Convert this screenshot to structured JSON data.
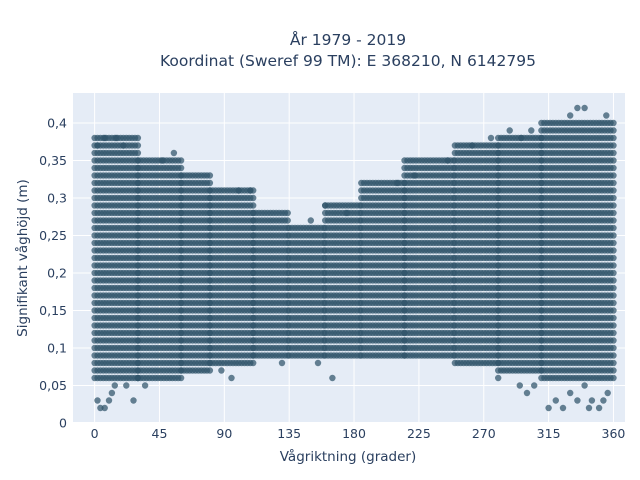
{
  "chart_data": {
    "type": "scatter",
    "title": "År 1979 - 2019",
    "subtitle": "Koordinat (Sweref 99 TM): E 368210, N 6142795",
    "xlabel": "Vågriktning (grader)",
    "ylabel": "Signifikant våghöjd (m)",
    "xlim": [
      -15,
      368
    ],
    "ylim": [
      0,
      0.44
    ],
    "x_ticks": [
      0,
      45,
      90,
      135,
      180,
      225,
      270,
      315,
      360
    ],
    "x_tick_labels": [
      "0",
      "45",
      "90",
      "135",
      "180",
      "225",
      "270",
      "315",
      "360"
    ],
    "y_ticks": [
      0,
      0.05,
      0.1,
      0.15,
      0.2,
      0.25,
      0.3,
      0.35,
      0.4
    ],
    "y_tick_labels": [
      "0",
      "0,05",
      "0,1",
      "0,15",
      "0,2",
      "0,25",
      "0,3",
      "0,35",
      "0,4"
    ],
    "grid": true,
    "legend": "none",
    "marker_color": "#2f5369",
    "plot_background": "#e5ecf6",
    "y_step": 0.01,
    "bands": [
      {
        "x_from": 0,
        "x_to": 30,
        "y_min": 0.06,
        "y_max": 0.38
      },
      {
        "x_from": 30,
        "x_to": 60,
        "y_min": 0.06,
        "y_max": 0.35
      },
      {
        "x_from": 60,
        "x_to": 80,
        "y_min": 0.07,
        "y_max": 0.33
      },
      {
        "x_from": 80,
        "x_to": 110,
        "y_min": 0.08,
        "y_max": 0.31
      },
      {
        "x_from": 110,
        "x_to": 135,
        "y_min": 0.09,
        "y_max": 0.28
      },
      {
        "x_from": 135,
        "x_to": 160,
        "y_min": 0.09,
        "y_max": 0.26
      },
      {
        "x_from": 160,
        "x_to": 185,
        "y_min": 0.09,
        "y_max": 0.29
      },
      {
        "x_from": 185,
        "x_to": 215,
        "y_min": 0.09,
        "y_max": 0.32
      },
      {
        "x_from": 215,
        "x_to": 250,
        "y_min": 0.09,
        "y_max": 0.35
      },
      {
        "x_from": 250,
        "x_to": 280,
        "y_min": 0.08,
        "y_max": 0.37
      },
      {
        "x_from": 280,
        "x_to": 310,
        "y_min": 0.07,
        "y_max": 0.38
      },
      {
        "x_from": 310,
        "x_to": 360,
        "y_min": 0.06,
        "y_max": 0.4
      }
    ],
    "outliers": [
      {
        "x": 2,
        "y": 0.03
      },
      {
        "x": 4,
        "y": 0.02
      },
      {
        "x": 7,
        "y": 0.02
      },
      {
        "x": 10,
        "y": 0.03
      },
      {
        "x": 12,
        "y": 0.04
      },
      {
        "x": 14,
        "y": 0.05
      },
      {
        "x": 27,
        "y": 0.03
      },
      {
        "x": 22,
        "y": 0.05
      },
      {
        "x": 35,
        "y": 0.05
      },
      {
        "x": 30,
        "y": 0.06
      },
      {
        "x": 95,
        "y": 0.06
      },
      {
        "x": 88,
        "y": 0.07
      },
      {
        "x": 165,
        "y": 0.06
      },
      {
        "x": 130,
        "y": 0.08
      },
      {
        "x": 155,
        "y": 0.08
      },
      {
        "x": 280,
        "y": 0.06
      },
      {
        "x": 295,
        "y": 0.05
      },
      {
        "x": 300,
        "y": 0.04
      },
      {
        "x": 305,
        "y": 0.05
      },
      {
        "x": 315,
        "y": 0.02
      },
      {
        "x": 320,
        "y": 0.03
      },
      {
        "x": 325,
        "y": 0.02
      },
      {
        "x": 330,
        "y": 0.04
      },
      {
        "x": 335,
        "y": 0.03
      },
      {
        "x": 340,
        "y": 0.05
      },
      {
        "x": 345,
        "y": 0.03
      },
      {
        "x": 350,
        "y": 0.02
      },
      {
        "x": 353,
        "y": 0.03
      },
      {
        "x": 356,
        "y": 0.04
      },
      {
        "x": 343,
        "y": 0.02
      },
      {
        "x": 335,
        "y": 0.42
      },
      {
        "x": 340,
        "y": 0.42
      },
      {
        "x": 330,
        "y": 0.41
      },
      {
        "x": 355,
        "y": 0.41
      },
      {
        "x": 288,
        "y": 0.39
      },
      {
        "x": 296,
        "y": 0.38
      },
      {
        "x": 2,
        "y": 0.37
      },
      {
        "x": 7,
        "y": 0.38
      },
      {
        "x": 15,
        "y": 0.38
      },
      {
        "x": 20,
        "y": 0.37
      },
      {
        "x": 55,
        "y": 0.36
      },
      {
        "x": 47,
        "y": 0.35
      },
      {
        "x": 100,
        "y": 0.31
      },
      {
        "x": 108,
        "y": 0.31
      },
      {
        "x": 150,
        "y": 0.27
      },
      {
        "x": 160,
        "y": 0.29
      },
      {
        "x": 175,
        "y": 0.28
      },
      {
        "x": 210,
        "y": 0.32
      },
      {
        "x": 222,
        "y": 0.33
      },
      {
        "x": 245,
        "y": 0.35
      },
      {
        "x": 262,
        "y": 0.37
      },
      {
        "x": 275,
        "y": 0.38
      },
      {
        "x": 303,
        "y": 0.39
      }
    ]
  }
}
